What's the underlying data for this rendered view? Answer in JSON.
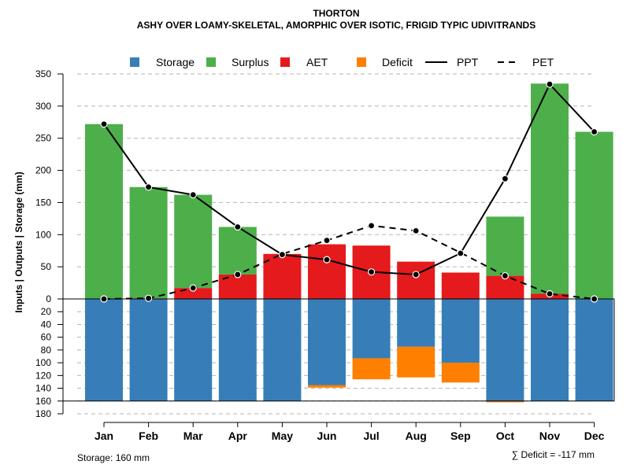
{
  "chart_data": {
    "type": "bar",
    "title": "THORTON",
    "subtitle": "ASHY OVER LOAMY-SKELETAL, AMORPHIC OVER ISOTIC, FRIGID TYPIC UDIVITRANDS",
    "ylabel": "Inputs | Outputs | Storage    (mm)",
    "categories": [
      "Jan",
      "Feb",
      "Mar",
      "Apr",
      "May",
      "Jun",
      "Jul",
      "Aug",
      "Sep",
      "Oct",
      "Nov",
      "Dec"
    ],
    "upper_ticks": [
      0,
      50,
      100,
      150,
      200,
      250,
      300,
      350
    ],
    "lower_ticks": [
      20,
      40,
      60,
      80,
      100,
      120,
      140,
      160,
      180
    ],
    "upper_ylim": [
      0,
      350
    ],
    "lower_ylim": [
      0,
      180
    ],
    "colors": {
      "storage": "#377eb8",
      "surplus": "#4daf4a",
      "aet": "#e41a1c",
      "deficit": "#ff7f00",
      "line": "#000000"
    },
    "legend": [
      "Storage",
      "Surplus",
      "AET",
      "Deficit",
      "PPT",
      "PET"
    ],
    "series": {
      "storage": [
        160,
        160,
        160,
        160,
        160,
        135,
        93,
        75,
        100,
        160,
        160,
        160
      ],
      "aet": [
        0,
        1,
        17,
        38,
        70,
        85,
        83,
        58,
        41,
        36,
        8,
        0
      ],
      "surplus": [
        272,
        173,
        145,
        74,
        0,
        0,
        0,
        0,
        0,
        92,
        327,
        260
      ],
      "deficit": [
        0,
        0,
        0,
        0,
        0,
        4,
        33,
        48,
        31,
        2,
        0,
        0
      ],
      "ppt": [
        272,
        174,
        162,
        112,
        69,
        61,
        42,
        38,
        71,
        187,
        334,
        260
      ],
      "pet": [
        0,
        1,
        17,
        38,
        70,
        91,
        114,
        106,
        72,
        36,
        8,
        0
      ]
    },
    "storage_label": "Storage: 160 mm",
    "deficit_label": "∑ Deficit = -117 mm"
  }
}
